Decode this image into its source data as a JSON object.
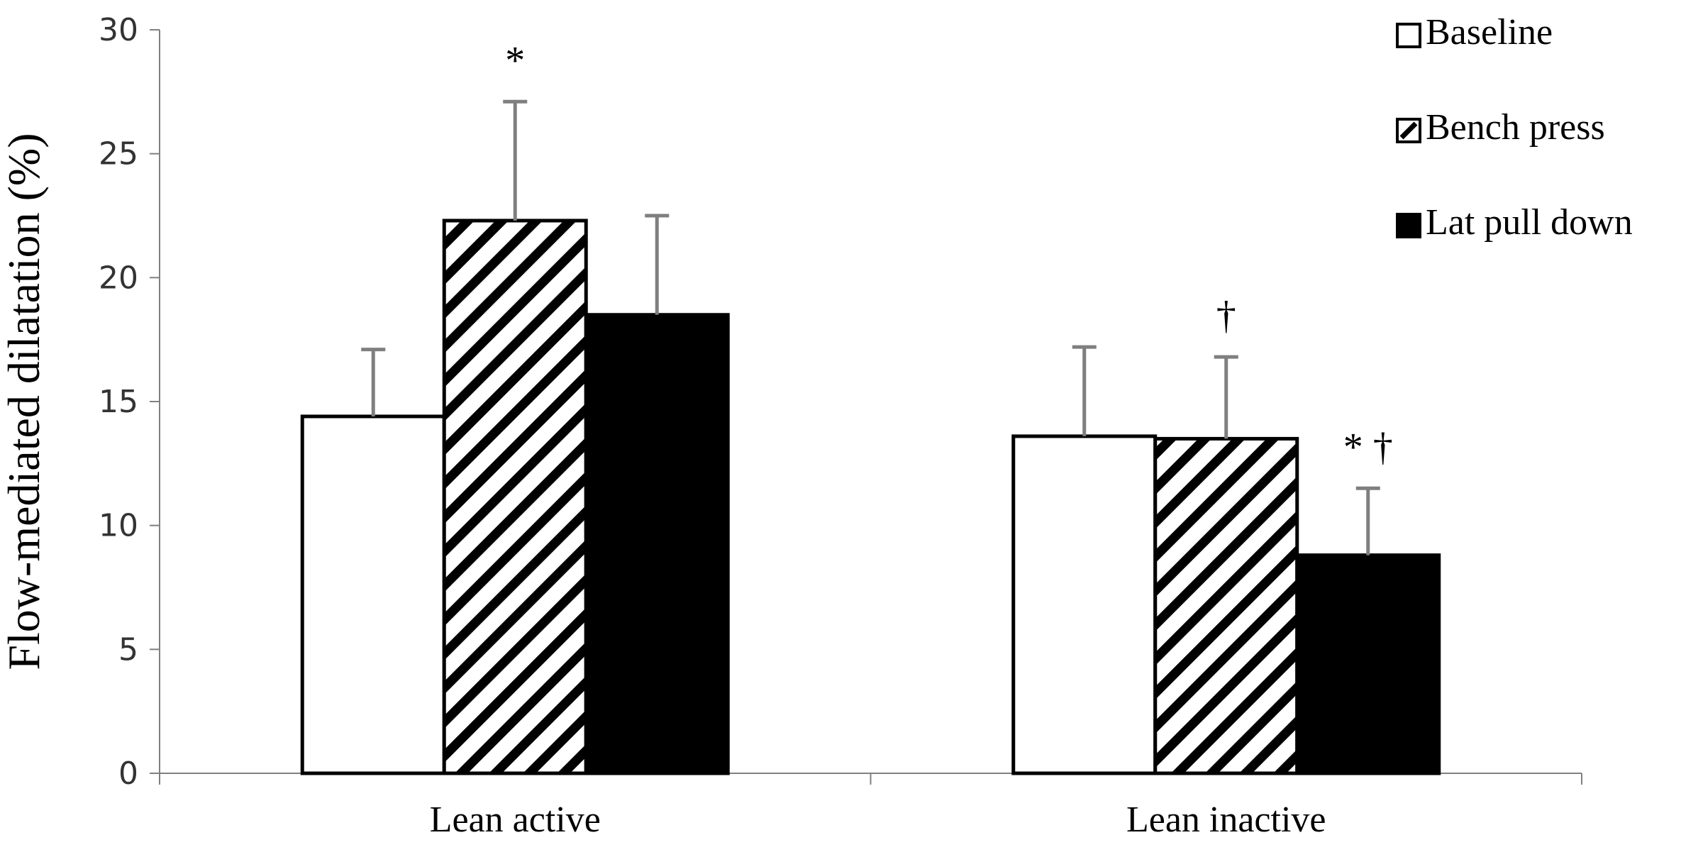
{
  "chart_data": {
    "type": "bar",
    "title": "",
    "xlabel": "",
    "ylabel": "Flow-mediated dilatation (%)",
    "ylim": [
      0,
      30
    ],
    "yticks": [
      0,
      5,
      10,
      15,
      20,
      25,
      30
    ],
    "grid": false,
    "legend_position": "top-right",
    "categories": [
      "Lean active",
      "Lean inactive"
    ],
    "series": [
      {
        "name": "Baseline",
        "values": [
          14.4,
          13.6
        ],
        "errors": [
          2.7,
          3.6
        ],
        "fill": "white",
        "color": "#ffffff"
      },
      {
        "name": "Bench press",
        "values": [
          22.3,
          13.5
        ],
        "errors": [
          4.8,
          3.3
        ],
        "fill": "hatch",
        "color": "#000000"
      },
      {
        "name": "Lat pull down",
        "values": [
          18.5,
          8.8
        ],
        "errors": [
          4.0,
          2.7
        ],
        "fill": "solid",
        "color": "#000000"
      }
    ],
    "annotations": [
      {
        "category": 0,
        "series": 1,
        "text": "*"
      },
      {
        "category": 1,
        "series": 1,
        "text": "†"
      },
      {
        "category": 1,
        "series": 2,
        "text": "* †"
      }
    ],
    "error_bar_color": "#7f7f7f"
  }
}
